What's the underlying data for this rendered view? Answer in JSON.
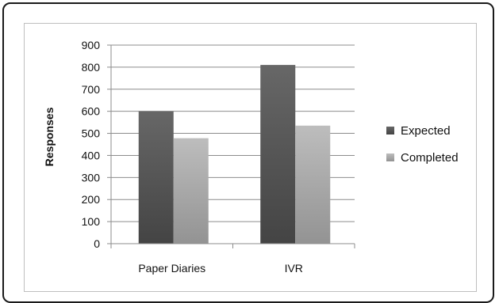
{
  "chart_data": {
    "type": "bar",
    "title": "",
    "xlabel": "",
    "ylabel": "Responses",
    "categories": [
      "Paper Diaries",
      "IVR"
    ],
    "series": [
      {
        "name": "Expected",
        "values": [
          600,
          810
        ],
        "color": "#555555"
      },
      {
        "name": "Completed",
        "values": [
          478,
          535
        ],
        "color": "#a6a6a6"
      }
    ],
    "ylim": [
      0,
      900
    ],
    "yticks": [
      "0",
      "100",
      "200",
      "300",
      "400",
      "500",
      "600",
      "700",
      "800",
      "900"
    ],
    "grid": true,
    "legend_position": "right"
  }
}
